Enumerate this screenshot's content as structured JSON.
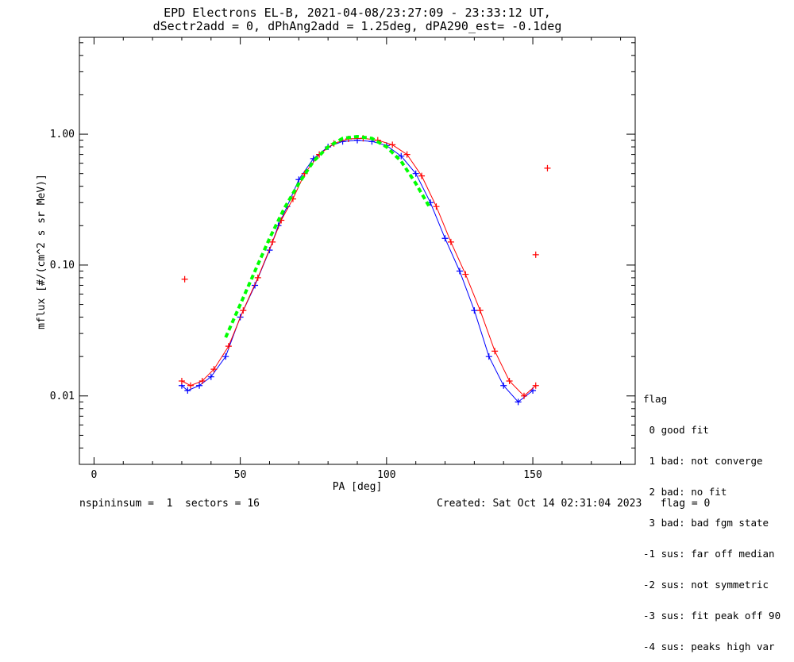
{
  "chart_data": {
    "type": "scatter",
    "title": "EPD Electrons EL-B, 2021-04-08/23:27:09 - 23:33:12 UT,",
    "subtitle": "dSectr2add = 0, dPhAng2add = 1.25deg, dPA290_est=  -0.1deg",
    "xlabel": "PA [deg]",
    "ylabel": "mflux [#/(cm^2 s sr MeV)]",
    "xlim": [
      -5,
      185
    ],
    "ylim": [
      0.003,
      5.5
    ],
    "yscale": "log",
    "x_ticks": [
      0,
      50,
      100,
      150
    ],
    "x_tick_labels": [
      "0",
      "50",
      "100",
      "150"
    ],
    "y_ticks": [
      0.01,
      0.1,
      1.0
    ],
    "y_tick_labels": [
      "0.01",
      "0.10",
      "1.00"
    ],
    "series": [
      {
        "marker": "+",
        "color": "#0000ff",
        "style": "lines+markers",
        "x": [
          30,
          32,
          36,
          40,
          45,
          50,
          55,
          60,
          63,
          66,
          70,
          75,
          80,
          85,
          90,
          95,
          100,
          105,
          110,
          115,
          120,
          125,
          130,
          135,
          140,
          145,
          150
        ],
        "y": [
          0.012,
          0.011,
          0.012,
          0.014,
          0.02,
          0.04,
          0.07,
          0.13,
          0.2,
          0.28,
          0.45,
          0.65,
          0.8,
          0.88,
          0.9,
          0.88,
          0.82,
          0.68,
          0.5,
          0.3,
          0.16,
          0.09,
          0.045,
          0.02,
          0.012,
          0.009,
          0.011
        ]
      },
      {
        "marker": "+",
        "color": "#ff0000",
        "style": "lines+markers",
        "x": [
          30,
          33,
          37,
          41,
          46,
          51,
          56,
          61,
          64,
          68,
          72,
          77,
          82,
          87,
          92,
          97,
          102,
          107,
          112,
          117,
          122,
          127,
          132,
          137,
          142,
          147,
          151
        ],
        "y": [
          0.013,
          0.012,
          0.013,
          0.016,
          0.024,
          0.045,
          0.08,
          0.15,
          0.22,
          0.32,
          0.5,
          0.7,
          0.85,
          0.92,
          0.93,
          0.9,
          0.83,
          0.7,
          0.48,
          0.28,
          0.15,
          0.085,
          0.045,
          0.022,
          0.013,
          0.01,
          0.012
        ]
      },
      {
        "marker": "+",
        "color": "#ff0000",
        "style": "markers",
        "x": [
          31,
          155,
          151
        ],
        "y": [
          0.078,
          0.55,
          0.12
        ]
      },
      {
        "color": "#00ff00",
        "style": "dashed",
        "x": [
          45,
          50,
          55,
          60,
          65,
          70,
          75,
          80,
          85,
          90,
          95,
          100,
          105,
          110,
          115
        ],
        "y": [
          0.028,
          0.05,
          0.09,
          0.16,
          0.27,
          0.42,
          0.62,
          0.8,
          0.93,
          0.96,
          0.93,
          0.8,
          0.62,
          0.42,
          0.27
        ]
      }
    ],
    "legend": {
      "title": "flag",
      "placement": "right",
      "entries": [
        " 0 good fit",
        " 1 bad: not converge",
        " 2 bad: no fit",
        " 3 bad: bad fgm state",
        "-1 sus: far off median",
        "-2 sus: not symmetric",
        "-3 sus: fit peak off 90",
        "-4 sus: peaks high var"
      ]
    }
  },
  "footer": {
    "left": "nspininsum =  1  sectors = 16",
    "right": "Created: Sat Oct 14 02:31:04 2023   flag = 0"
  }
}
